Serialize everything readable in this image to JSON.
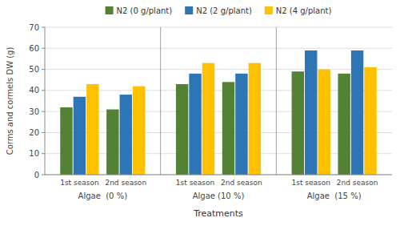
{
  "chart_data": {
    "type": "bar",
    "categories": [
      "1st season",
      "2nd season",
      "1st season",
      "2nd season",
      "1st season",
      "2nd season"
    ],
    "annotations": [
      "Algae  (0 %)",
      "Algae (10 %)",
      "Algae  (15 %)"
    ],
    "series": [
      {
        "name": "N2 (0 g/plant)",
        "color": "#548235",
        "values": [
          32,
          31,
          43,
          44,
          49,
          48
        ]
      },
      {
        "name": "N2 (2 g/plant)",
        "color": "#2E75B6",
        "values": [
          37,
          38,
          48,
          48,
          59,
          59
        ]
      },
      {
        "name": "N2 (4 g/plant)",
        "color": "#FFC000",
        "values": [
          43,
          42,
          53,
          53,
          50,
          51
        ]
      }
    ],
    "y_label": "Corms and cormels DW (g)",
    "x_label": "Treatments",
    "ylim": [
      0,
      70
    ],
    "yticks": [
      0,
      10,
      20,
      30,
      40,
      50,
      60,
      70
    ],
    "grid": true,
    "legend": "top"
  }
}
